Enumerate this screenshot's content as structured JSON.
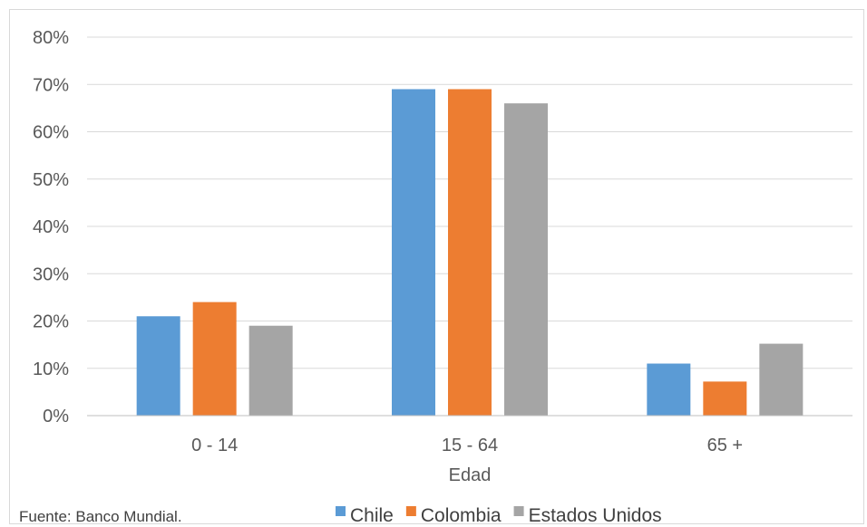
{
  "chart_data": {
    "type": "bar",
    "title": "",
    "xlabel": "Edad",
    "ylabel": "",
    "categories": [
      "0 - 14",
      "15 - 64",
      "65 +"
    ],
    "series": [
      {
        "name": "Chile",
        "color": "#5b9bd5",
        "values": [
          0.21,
          0.69,
          0.11
        ]
      },
      {
        "name": "Colombia",
        "color": "#ed7d31",
        "values": [
          0.24,
          0.69,
          0.072
        ]
      },
      {
        "name": "Estados Unidos",
        "color": "#a5a5a5",
        "values": [
          0.19,
          0.66,
          0.152
        ]
      }
    ],
    "ylim": [
      0,
      0.8
    ],
    "yticks": [
      0,
      0.1,
      0.2,
      0.3,
      0.4,
      0.5,
      0.6,
      0.7,
      0.8
    ],
    "ytick_labels": [
      "0%",
      "10%",
      "20%",
      "30%",
      "40%",
      "50%",
      "60%",
      "70%",
      "80%"
    ],
    "grid": true,
    "legend_position": "bottom"
  },
  "footnote": "Fuente: Banco Mundial."
}
